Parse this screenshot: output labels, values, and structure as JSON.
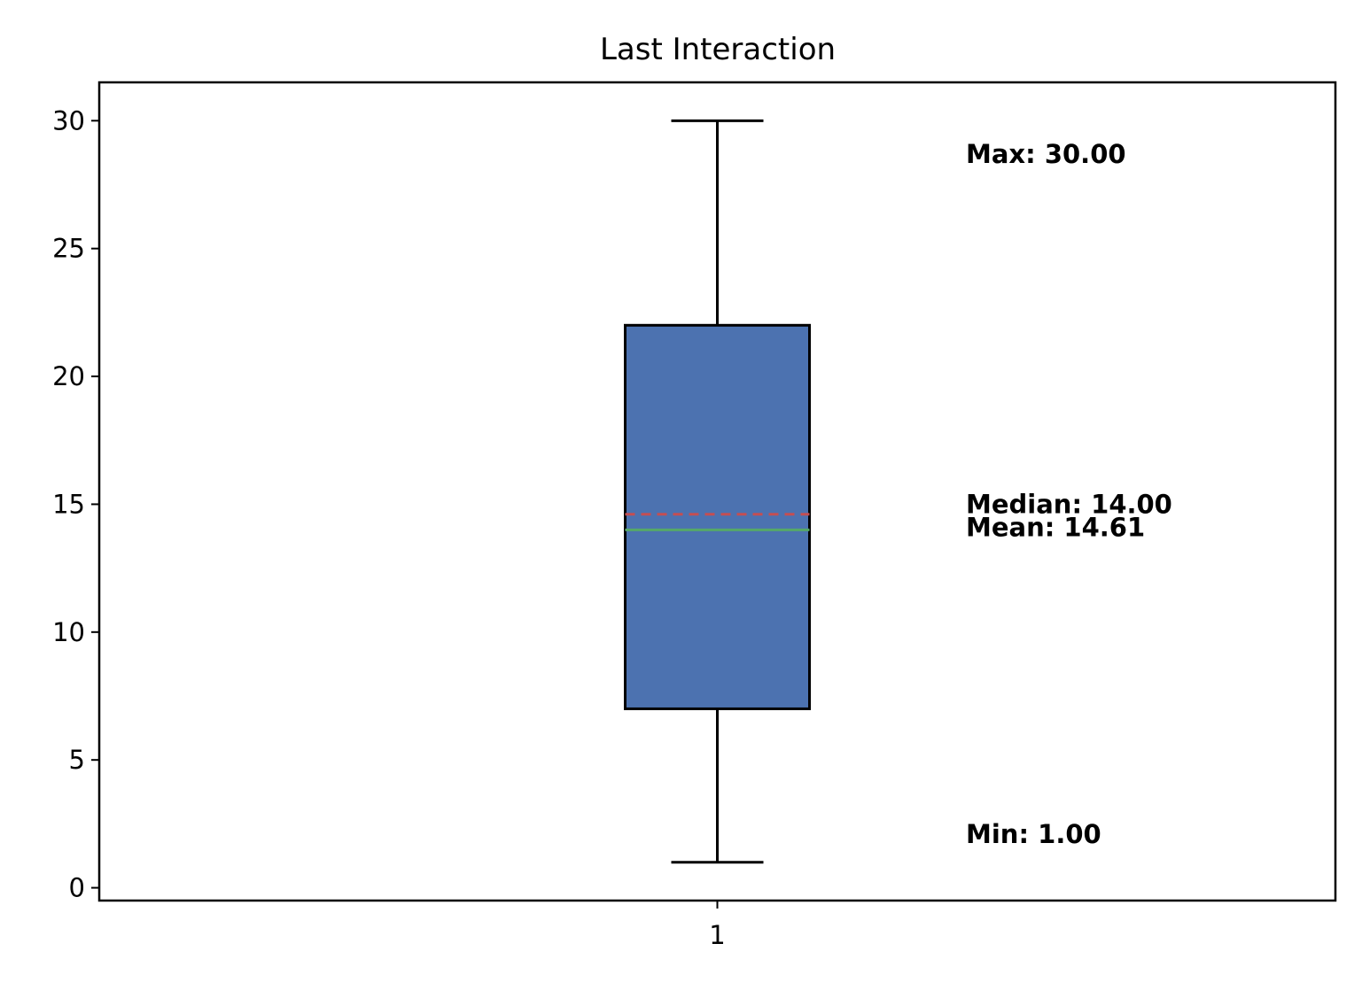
{
  "chart_data": {
    "type": "box",
    "title": "Last Interaction",
    "xlabel": "",
    "ylabel": "",
    "categories": [
      "1"
    ],
    "ylim": [
      -0.5,
      31.5
    ],
    "yticks": [
      0,
      5,
      10,
      15,
      20,
      25,
      30
    ],
    "ytick_labels": [
      "0",
      "5",
      "10",
      "15",
      "20",
      "25",
      "30"
    ],
    "grid": false,
    "box": {
      "whisker_low": 1.0,
      "q1": 7.0,
      "median": 14.0,
      "mean": 14.61,
      "q3": 22.0,
      "whisker_high": 30.0
    },
    "annotations": [
      {
        "name": "max",
        "text": "Max: 30.00",
        "y": 28.7
      },
      {
        "name": "median",
        "text": "Median: 14.00",
        "y": 15.0
      },
      {
        "name": "mean",
        "text": "Mean: 14.61",
        "y": 14.1
      },
      {
        "name": "min",
        "text": "Min: 1.00",
        "y": 2.1
      }
    ],
    "colors": {
      "box_fill": "#4c72b0",
      "box_edge": "#000000",
      "median_line": "#55a868",
      "mean_line": "#c44e52",
      "whisker": "#000000"
    }
  }
}
